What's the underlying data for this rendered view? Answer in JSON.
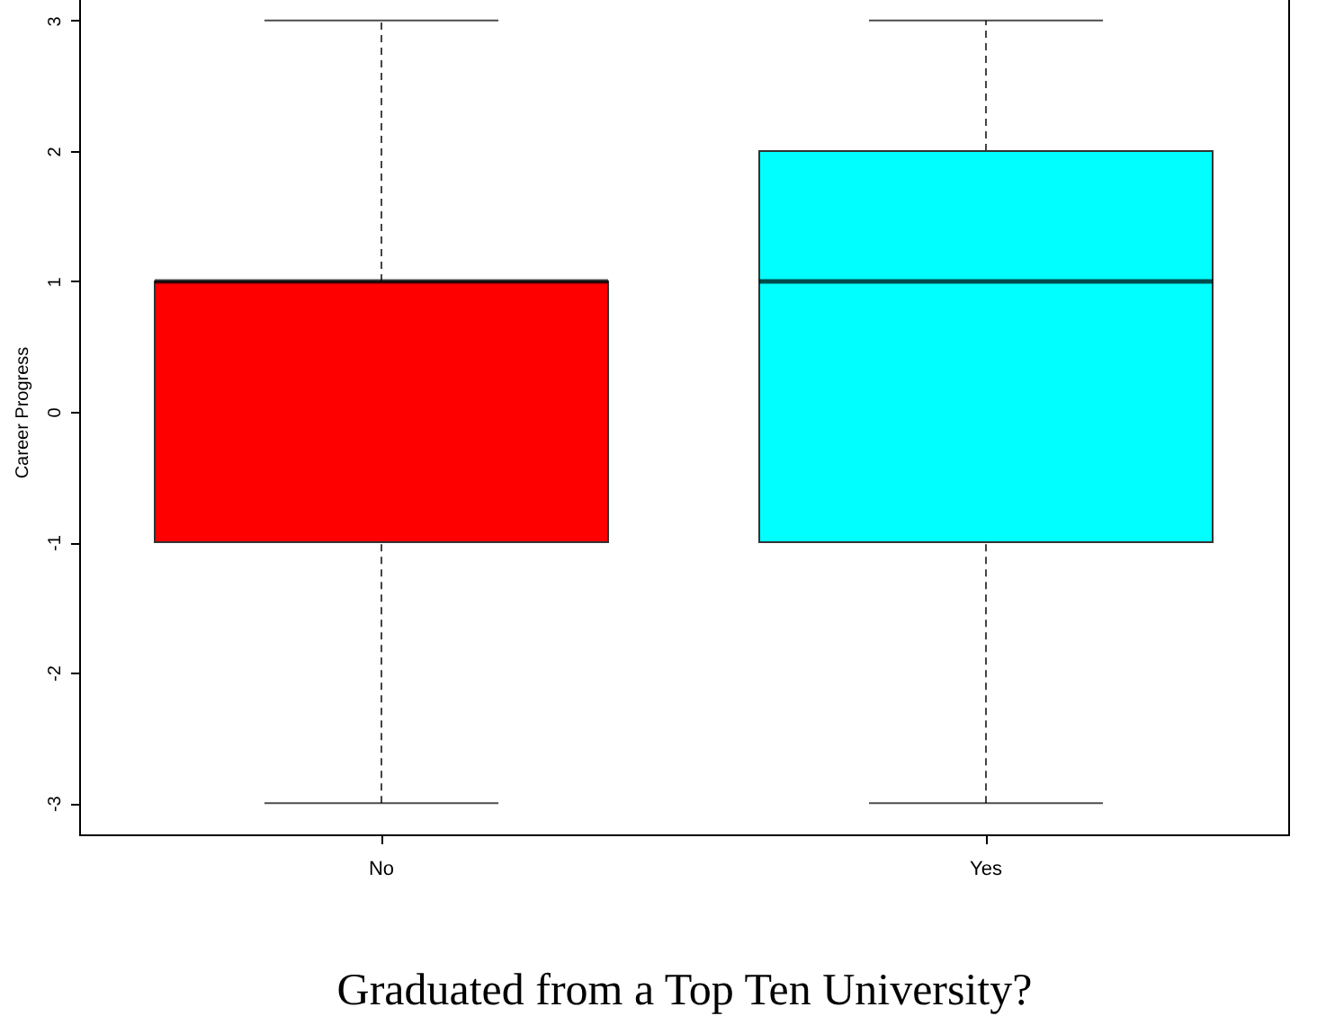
{
  "chart_data": {
    "type": "box",
    "xlabel": "Graduated from a Top Ten University?",
    "ylabel": "Career Progress",
    "categories": [
      "No",
      "Yes"
    ],
    "boxes": [
      {
        "low": -3,
        "q1": -1,
        "median": 1,
        "q3": 1,
        "high": 3
      },
      {
        "low": -3,
        "q1": -1,
        "median": 1,
        "q3": 2,
        "high": 3
      }
    ],
    "colors": [
      "#ff0000",
      "#00ffff"
    ],
    "ylim": [
      -3.24,
      3.24
    ],
    "yticks": [
      -3,
      -2,
      -1,
      0,
      1,
      2,
      3
    ],
    "grid": false,
    "line_style": "dashed"
  }
}
